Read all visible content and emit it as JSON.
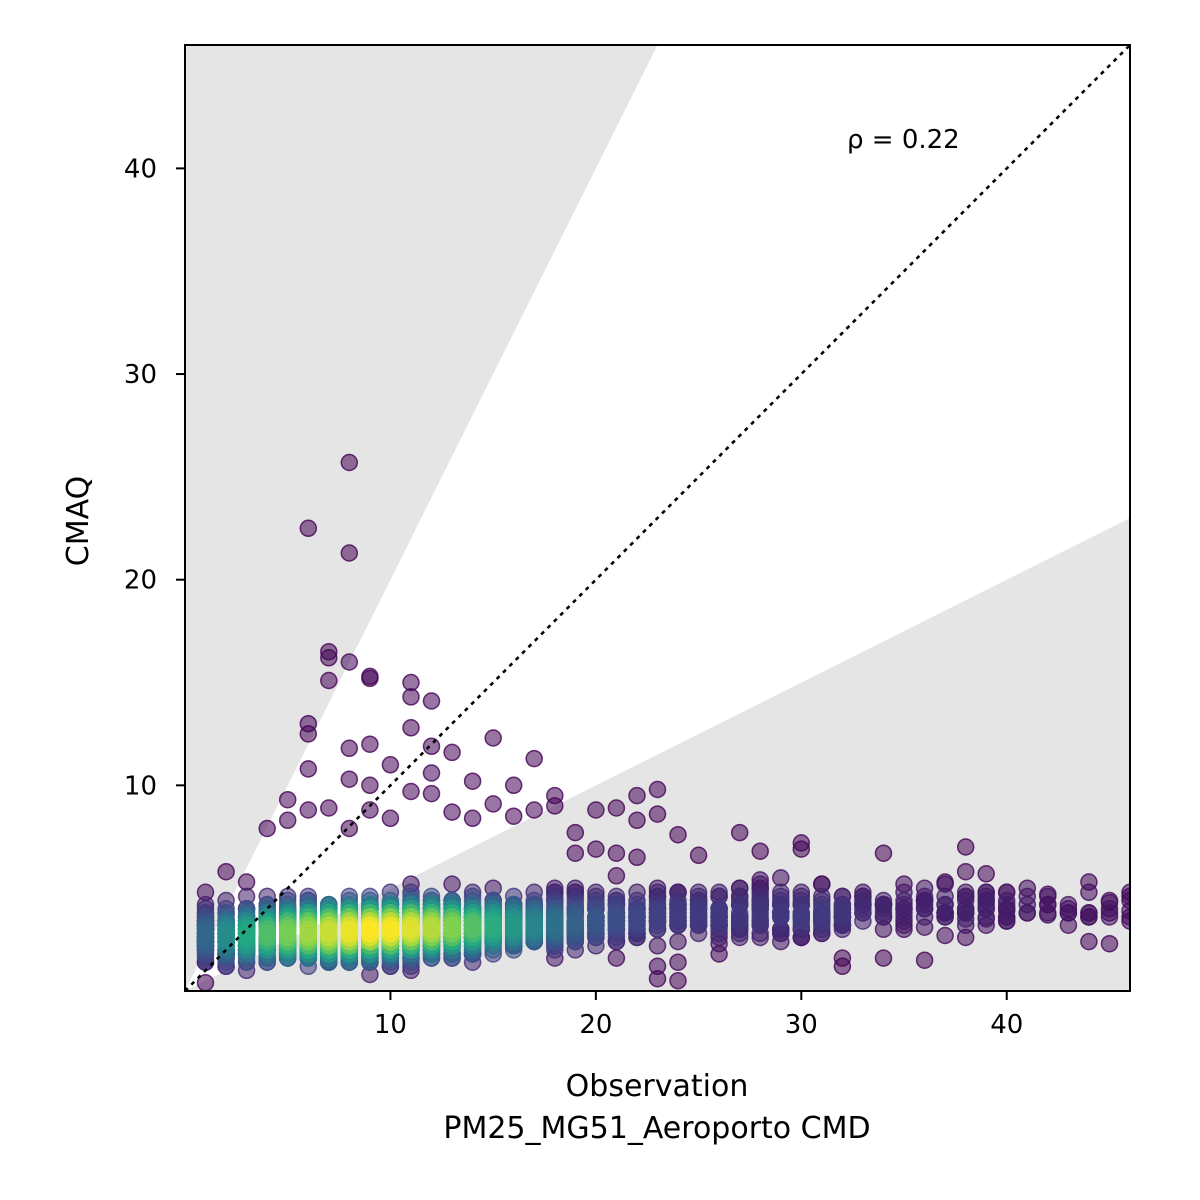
{
  "chart_data": {
    "type": "scatter",
    "xlabel_lines": [
      "Observation",
      "PM25_MG51_Aeroporto CMD"
    ],
    "ylabel": "CMAQ",
    "xlim": [
      0,
      46
    ],
    "ylim": [
      0,
      46
    ],
    "x_ticks": [
      10,
      20,
      30,
      40
    ],
    "y_ticks": [
      10,
      20,
      30,
      40
    ],
    "annotation": "ρ = 0.22",
    "reference_line": {
      "style": "dotted",
      "slope": 1,
      "color": "#000000"
    },
    "shaded_band": {
      "color": "#e5e5e5",
      "outside_slope_upper": 2,
      "outside_slope_lower": 0.5
    },
    "colormap": "viridis",
    "point_alpha": 0.55,
    "outliers": [
      [
        6,
        22.5
      ],
      [
        8,
        25.7
      ],
      [
        8,
        21.3
      ],
      [
        7,
        16.5
      ],
      [
        7,
        16.2
      ],
      [
        7,
        15.1
      ],
      [
        8,
        16.0
      ],
      [
        9,
        15.3
      ],
      [
        9,
        15.2
      ],
      [
        11,
        15.0
      ],
      [
        11,
        14.3
      ],
      [
        12,
        14.1
      ],
      [
        6,
        13.0
      ],
      [
        6,
        12.5
      ],
      [
        11,
        12.8
      ],
      [
        15,
        12.3
      ],
      [
        9,
        12.0
      ],
      [
        8,
        11.8
      ],
      [
        12,
        11.9
      ],
      [
        13,
        11.6
      ],
      [
        17,
        11.3
      ],
      [
        6,
        10.8
      ],
      [
        8,
        10.3
      ],
      [
        9,
        10.0
      ],
      [
        10,
        11.0
      ],
      [
        12,
        10.6
      ],
      [
        14,
        10.2
      ],
      [
        16,
        10.0
      ],
      [
        23,
        9.8
      ],
      [
        22,
        9.5
      ],
      [
        18,
        9.5
      ],
      [
        5,
        9.3
      ],
      [
        12,
        9.6
      ],
      [
        15,
        9.1
      ],
      [
        16,
        8.5
      ],
      [
        20,
        8.8
      ],
      [
        21,
        8.9
      ],
      [
        22,
        8.3
      ],
      [
        23,
        8.6
      ],
      [
        19,
        7.7
      ],
      [
        24,
        7.6
      ],
      [
        27,
        7.7
      ],
      [
        30,
        7.2
      ],
      [
        30,
        6.9
      ],
      [
        28,
        6.8
      ],
      [
        25,
        6.6
      ],
      [
        34,
        6.7
      ],
      [
        38,
        7.0
      ],
      [
        38,
        5.8
      ],
      [
        39,
        5.7
      ],
      [
        37,
        5.3
      ],
      [
        41,
        5.0
      ],
      [
        42,
        4.7
      ],
      [
        44,
        5.3
      ],
      [
        44,
        4.8
      ],
      [
        45,
        4.3
      ],
      [
        46,
        4.4
      ],
      [
        46,
        3.9
      ],
      [
        42,
        3.7
      ],
      [
        43,
        3.8
      ],
      [
        44,
        2.4
      ],
      [
        45,
        2.3
      ],
      [
        36,
        1.5
      ],
      [
        34,
        1.6
      ],
      [
        32,
        1.2
      ],
      [
        32,
        1.6
      ],
      [
        24,
        0.5
      ],
      [
        23,
        0.6
      ],
      [
        23,
        1.2
      ],
      [
        24,
        1.4
      ],
      [
        26,
        1.8
      ],
      [
        26,
        2.3
      ],
      [
        35,
        3.0
      ],
      [
        36,
        3.1
      ],
      [
        37,
        2.7
      ],
      [
        38,
        2.6
      ],
      [
        38,
        3.5
      ],
      [
        39,
        3.5
      ],
      [
        40,
        3.9
      ],
      [
        33,
        4.8
      ],
      [
        29,
        5.5
      ],
      [
        28,
        4.0
      ],
      [
        27,
        3.0
      ],
      [
        31,
        3.8
      ],
      [
        1,
        4.8
      ],
      [
        1,
        0.4
      ],
      [
        2,
        5.8
      ],
      [
        3,
        5.3
      ],
      [
        4,
        7.9
      ],
      [
        5,
        8.3
      ],
      [
        6,
        8.8
      ],
      [
        7,
        8.9
      ],
      [
        8,
        7.9
      ],
      [
        9,
        8.8
      ],
      [
        10,
        8.4
      ],
      [
        11,
        9.7
      ],
      [
        13,
        8.7
      ],
      [
        14,
        8.4
      ],
      [
        17,
        8.8
      ],
      [
        18,
        9.0
      ],
      [
        19,
        6.7
      ],
      [
        20,
        6.9
      ],
      [
        21,
        6.7
      ],
      [
        22,
        6.5
      ]
    ]
  }
}
